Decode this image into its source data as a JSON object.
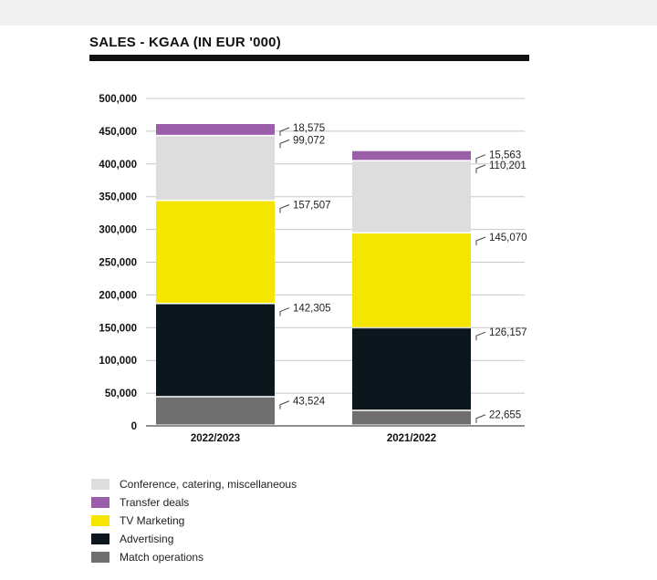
{
  "chart_data": {
    "type": "bar",
    "stacked": true,
    "title": "SALES - KGAA (IN EUR '000)",
    "categories": [
      "2022/2023",
      "2021/2022"
    ],
    "ylim": [
      0,
      500000
    ],
    "yticks": [
      "0",
      "50,000",
      "100,000",
      "150,000",
      "200,000",
      "250,000",
      "300,000",
      "350,000",
      "400,000",
      "450,000",
      "500,000"
    ],
    "grid": true,
    "legend_position": "bottom-left",
    "series": [
      {
        "name": "Match operations",
        "color": "#6f6f6f",
        "values": [
          43524,
          22655
        ],
        "labels": [
          "43,524",
          "22,655"
        ]
      },
      {
        "name": "Advertising",
        "color": "#0b161d",
        "values": [
          142305,
          126157
        ],
        "labels": [
          "142,305",
          "126,157"
        ]
      },
      {
        "name": "TV Marketing",
        "color": "#f4e600",
        "values": [
          157507,
          145070
        ],
        "labels": [
          "157,507",
          "145,070"
        ]
      },
      {
        "name": "Conference, catering, miscellaneous",
        "color": "#dddddd",
        "values": [
          99072,
          110201
        ],
        "labels": [
          "99,072",
          "110,201"
        ]
      },
      {
        "name": "Transfer deals",
        "color": "#9b5ea9",
        "values": [
          18575,
          15563
        ],
        "labels": [
          "18,575",
          "15,563"
        ]
      }
    ],
    "legend_order": [
      "Conference, catering, miscellaneous",
      "Transfer deals",
      "TV Marketing",
      "Advertising",
      "Match operations"
    ]
  }
}
